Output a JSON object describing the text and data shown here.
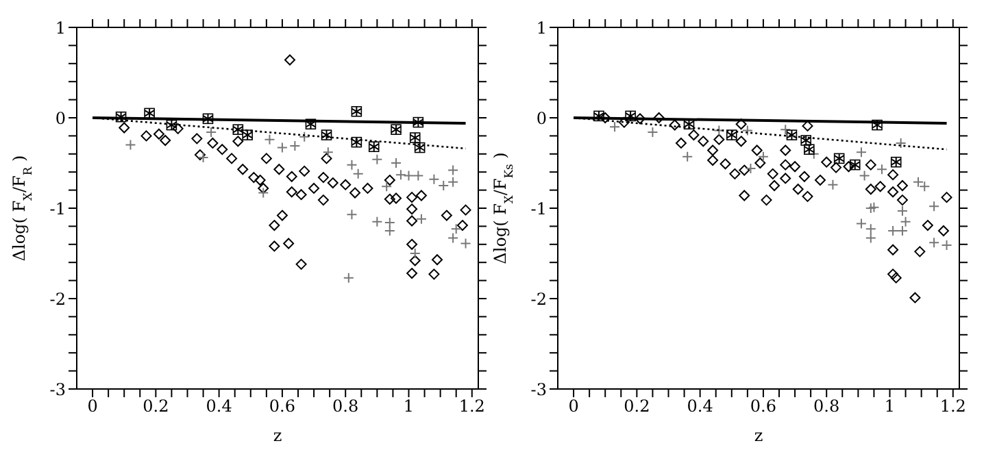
{
  "chart_data": [
    {
      "type": "scatter",
      "xlabel": "z",
      "ylabel": "Δlog( F$_{X}$/F$_{R}$ )",
      "xlim": [
        -0.05,
        1.22
      ],
      "ylim": [
        -3,
        1
      ],
      "xticks": [
        0,
        {
          "value": 0.05,
          "label": null
        },
        {
          "value": 0.1,
          "label": null
        },
        {
          "value": 0.15,
          "label": null
        },
        0.2,
        {
          "value": 0.25,
          "label": null
        },
        {
          "value": 0.3,
          "label": null
        },
        {
          "value": 0.35,
          "label": null
        },
        0.4,
        {
          "value": 0.45,
          "label": null
        },
        {
          "value": 0.5,
          "label": null
        },
        {
          "value": 0.55,
          "label": null
        },
        0.6,
        {
          "value": 0.65,
          "label": null
        },
        {
          "value": 0.7,
          "label": null
        },
        {
          "value": 0.75,
          "label": null
        },
        0.8,
        {
          "value": 0.85,
          "label": null
        },
        {
          "value": 0.9,
          "label": null
        },
        {
          "value": 0.95,
          "label": null
        },
        1,
        {
          "value": 1.05,
          "label": null
        },
        {
          "value": 1.1,
          "label": null
        },
        {
          "value": 1.15,
          "label": null
        },
        1.2
      ],
      "yticks": [
        -3,
        {
          "value": -2.8,
          "label": null
        },
        {
          "value": -2.6,
          "label": null
        },
        {
          "value": -2.4,
          "label": null
        },
        {
          "value": -2.2,
          "label": null
        },
        -2,
        {
          "value": -1.8,
          "label": null
        },
        {
          "value": -1.6,
          "label": null
        },
        {
          "value": -1.4,
          "label": null
        },
        {
          "value": -1.2,
          "label": null
        },
        -1,
        {
          "value": -0.8,
          "label": null
        },
        {
          "value": -0.6,
          "label": null
        },
        {
          "value": -0.4,
          "label": null
        },
        {
          "value": -0.2,
          "label": null
        },
        0,
        {
          "value": 0.2,
          "label": null
        },
        {
          "value": 0.4,
          "label": null
        },
        {
          "value": 0.6,
          "label": null
        },
        {
          "value": 0.8,
          "label": null
        },
        1
      ],
      "series": [
        {
          "type": "scatter",
          "marker": "diamond",
          "color": "#000000",
          "x": [
            0.624,
            0.1,
            0.17,
            0.21,
            0.23,
            0.27,
            0.33,
            0.34,
            0.38,
            0.41,
            0.44,
            0.475,
            0.46,
            0.51,
            0.53,
            0.54,
            0.55,
            0.59,
            0.63,
            0.63,
            0.66,
            0.67,
            0.7,
            0.73,
            0.73,
            0.74,
            0.76,
            0.8,
            0.83,
            0.87,
            0.94,
            0.94,
            0.96,
            1.01,
            1.01,
            1.04,
            1.12,
            1.18,
            1.01,
            0.575,
            0.6,
            0.575,
            0.62,
            0.66,
            1.01,
            1.02,
            1.01,
            1.08,
            1.09,
            1.17
          ],
          "values": [
            0.64,
            -0.11,
            -0.2,
            -0.18,
            -0.25,
            -0.12,
            -0.23,
            -0.41,
            -0.28,
            -0.35,
            -0.45,
            -0.57,
            -0.26,
            -0.66,
            -0.69,
            -0.78,
            -0.45,
            -0.57,
            -0.65,
            -0.82,
            -0.85,
            -0.59,
            -0.78,
            -0.66,
            -0.91,
            -0.45,
            -0.72,
            -0.74,
            -0.83,
            -0.78,
            -0.69,
            -0.9,
            -0.89,
            -0.88,
            -1.01,
            -0.86,
            -1.08,
            -1.02,
            -1.14,
            -1.19,
            -1.08,
            -1.42,
            -1.39,
            -1.62,
            -1.4,
            -1.58,
            -1.72,
            -1.73,
            -1.57,
            -1.19
          ]
        },
        {
          "type": "scatter",
          "marker": "cross",
          "color": "#777777",
          "x": [
            0.12,
            0.35,
            0.375,
            0.56,
            0.6,
            0.64,
            0.67,
            0.745,
            0.82,
            0.84,
            0.9,
            0.96,
            0.975,
            1.0,
            1.03,
            1.08,
            1.11,
            1.14,
            1.14,
            0.54,
            0.93,
            0.82,
            0.9,
            0.94,
            0.94,
            1.04,
            1.14,
            1.18,
            1.15,
            0.81,
            1.02
          ],
          "values": [
            -0.3,
            -0.44,
            -0.16,
            -0.24,
            -0.33,
            -0.31,
            -0.21,
            -0.38,
            -0.52,
            -0.62,
            -0.46,
            -0.5,
            -0.63,
            -0.64,
            -0.64,
            -0.68,
            -0.75,
            -0.71,
            -0.58,
            -0.83,
            -0.76,
            -1.07,
            -1.15,
            -1.16,
            -1.25,
            -1.12,
            -1.33,
            -1.39,
            -1.23,
            -1.77,
            -1.5
          ]
        },
        {
          "type": "scatter",
          "marker": "square",
          "color": "#000000",
          "x": [
            0.09,
            0.18,
            0.25,
            0.365,
            0.46,
            0.49,
            0.69,
            0.74,
            0.835,
            0.835,
            0.89,
            0.96,
            1.02,
            1.03,
            1.035
          ],
          "values": [
            0.01,
            0.05,
            -0.08,
            -0.01,
            -0.13,
            -0.19,
            -0.07,
            -0.19,
            0.07,
            -0.27,
            -0.32,
            -0.13,
            -0.22,
            -0.05,
            -0.33
          ]
        },
        {
          "type": "line",
          "line_style": "solid",
          "color": "#000000",
          "x": [
            0,
            1.18
          ],
          "values": [
            0,
            -0.06
          ]
        },
        {
          "type": "line",
          "line_style": "dotted",
          "color": "#000000",
          "x": [
            0,
            1.18
          ],
          "values": [
            0,
            -0.34
          ]
        }
      ]
    },
    {
      "type": "scatter",
      "xlabel": "z",
      "ylabel": "Δlog( F$_{X}$/F$_{Ks}$ )",
      "xlim": [
        -0.05,
        1.22
      ],
      "ylim": [
        -3,
        1
      ],
      "xticks": [
        0,
        {
          "value": 0.05,
          "label": null
        },
        {
          "value": 0.1,
          "label": null
        },
        {
          "value": 0.15,
          "label": null
        },
        0.2,
        {
          "value": 0.25,
          "label": null
        },
        {
          "value": 0.3,
          "label": null
        },
        {
          "value": 0.35,
          "label": null
        },
        0.4,
        {
          "value": 0.45,
          "label": null
        },
        {
          "value": 0.5,
          "label": null
        },
        {
          "value": 0.55,
          "label": null
        },
        0.6,
        {
          "value": 0.65,
          "label": null
        },
        {
          "value": 0.7,
          "label": null
        },
        {
          "value": 0.75,
          "label": null
        },
        0.8,
        {
          "value": 0.85,
          "label": null
        },
        {
          "value": 0.9,
          "label": null
        },
        {
          "value": 0.95,
          "label": null
        },
        1,
        {
          "value": 1.05,
          "label": null
        },
        {
          "value": 1.1,
          "label": null
        },
        {
          "value": 1.15,
          "label": null
        },
        1.2
      ],
      "yticks": [
        -3,
        {
          "value": -2.8,
          "label": null
        },
        {
          "value": -2.6,
          "label": null
        },
        {
          "value": -2.4,
          "label": null
        },
        {
          "value": -2.2,
          "label": null
        },
        -2,
        {
          "value": -1.8,
          "label": null
        },
        {
          "value": -1.6,
          "label": null
        },
        {
          "value": -1.4,
          "label": null
        },
        {
          "value": -1.2,
          "label": null
        },
        -1,
        {
          "value": -0.8,
          "label": null
        },
        {
          "value": -0.6,
          "label": null
        },
        {
          "value": -0.4,
          "label": null
        },
        {
          "value": -0.2,
          "label": null
        },
        0,
        {
          "value": 0.2,
          "label": null
        },
        {
          "value": 0.4,
          "label": null
        },
        {
          "value": 0.6,
          "label": null
        },
        {
          "value": 0.8,
          "label": null
        },
        1
      ],
      "series": [
        {
          "type": "scatter",
          "marker": "diamond",
          "color": "#000000",
          "x": [
            0.1,
            0.16,
            0.21,
            0.27,
            0.32,
            0.34,
            0.38,
            0.41,
            0.44,
            0.46,
            0.44,
            0.48,
            0.51,
            0.54,
            0.53,
            0.53,
            0.54,
            0.58,
            0.59,
            0.61,
            0.63,
            0.635,
            0.67,
            0.67,
            0.67,
            0.7,
            0.71,
            0.73,
            0.74,
            0.74,
            0.78,
            0.8,
            0.83,
            0.87,
            0.94,
            0.94,
            0.97,
            1.01,
            1.01,
            1.04,
            1.04,
            1.18,
            1.12,
            1.17,
            1.01,
            1.095,
            1.01,
            1.02,
            1.08
          ],
          "values": [
            0.0,
            -0.05,
            -0.01,
            0.0,
            -0.08,
            -0.28,
            -0.19,
            -0.26,
            -0.36,
            -0.24,
            -0.47,
            -0.51,
            -0.62,
            -0.58,
            -0.26,
            -0.07,
            -0.86,
            -0.36,
            -0.5,
            -0.91,
            -0.62,
            -0.75,
            -0.67,
            -0.52,
            -0.36,
            -0.54,
            -0.79,
            -0.65,
            -0.87,
            -0.09,
            -0.69,
            -0.49,
            -0.55,
            -0.54,
            -0.79,
            -0.52,
            -0.76,
            -0.63,
            -0.82,
            -0.91,
            -0.75,
            -0.88,
            -1.19,
            -1.25,
            -1.46,
            -1.48,
            -1.73,
            -1.77,
            -1.99
          ]
        },
        {
          "type": "scatter",
          "marker": "cross",
          "color": "#777777",
          "x": [
            0.13,
            0.25,
            0.36,
            0.46,
            0.55,
            0.56,
            0.6,
            0.67,
            0.76,
            0.82,
            0.91,
            0.92,
            0.975,
            1.09,
            1.11,
            1.14,
            1.035,
            0.95,
            0.91,
            0.94,
            0.94,
            1.01,
            1.04,
            1.05,
            1.04,
            1.14,
            1.18,
            0.94
          ],
          "values": [
            -0.1,
            -0.16,
            -0.43,
            -0.14,
            -0.14,
            -0.56,
            -0.43,
            -0.13,
            -0.4,
            -0.74,
            -0.38,
            -0.64,
            -0.57,
            -0.71,
            -0.76,
            -0.98,
            -0.28,
            -0.99,
            -1.17,
            -1.23,
            -1.33,
            -1.25,
            -1.25,
            -1.15,
            -1.03,
            -1.38,
            -1.41,
            -1.0
          ]
        },
        {
          "type": "scatter",
          "marker": "square",
          "color": "#000000",
          "x": [
            0.08,
            0.18,
            0.365,
            0.5,
            0.69,
            0.735,
            0.745,
            0.84,
            0.89,
            0.96,
            1.02
          ],
          "values": [
            0.02,
            0.02,
            -0.07,
            -0.19,
            -0.19,
            -0.25,
            -0.35,
            -0.45,
            -0.52,
            -0.08,
            -0.49
          ]
        },
        {
          "type": "line",
          "line_style": "solid",
          "color": "#000000",
          "x": [
            0,
            1.18
          ],
          "values": [
            0,
            -0.06
          ]
        },
        {
          "type": "line",
          "line_style": "dotted",
          "color": "#000000",
          "x": [
            0,
            1.18
          ],
          "values": [
            0,
            -0.35
          ]
        }
      ]
    }
  ]
}
